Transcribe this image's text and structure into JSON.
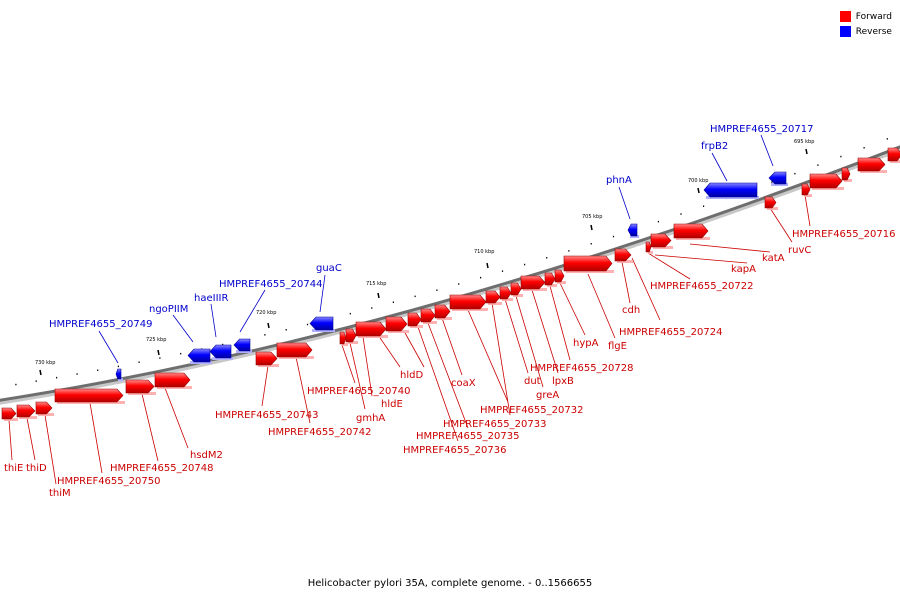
{
  "legend": {
    "forward_label": "Forward",
    "reverse_label": "Reverse",
    "forward_color": "#ff0000",
    "reverse_color": "#0000ff"
  },
  "caption": "Helicobacter pylori 35A, complete genome. - 0..1566655",
  "ticks": [
    "730 kbp",
    "725 kbp",
    "720 kbp",
    "715 kbp",
    "710 kbp",
    "705 kbp",
    "700 kbp",
    "695 kbp"
  ],
  "forward_labels": [
    "thiE",
    "thiD",
    "thiM",
    "HMPREF4655_20750",
    "HMPREF4655_20748",
    "hsdM2",
    "HMPREF4655_20743",
    "HMPREF4655_20742",
    "HMPREF4655_20740",
    "gmhA",
    "hldE",
    "hldD",
    "HMPREF4655_20736",
    "HMPREF4655_20735",
    "coaX",
    "HMPREF4655_20733",
    "HMPREF4655_20732",
    "dut",
    "greA",
    "lpxB",
    "HMPREF4655_20728",
    "hypA",
    "flgE",
    "HMPREF4655_20724",
    "cdh",
    "HMPREF4655_20722",
    "kapA",
    "katA",
    "ruvC",
    "HMPREF4655_20716"
  ],
  "reverse_labels": [
    "HMPREF4655_20749",
    "ngoPIIM",
    "haeIIIR",
    "HMPREF4655_20744",
    "guaC",
    "phnA",
    "frpB2",
    "HMPREF4655_20717"
  ]
}
